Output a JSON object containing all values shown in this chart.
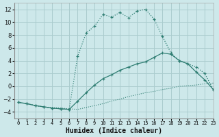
{
  "bg_color": "#cde8ea",
  "grid_color": "#aaccce",
  "line_color": "#2e7d72",
  "xlabel": "Humidex (Indice chaleur)",
  "line1_x": [
    0,
    1,
    2,
    3,
    4,
    5,
    6,
    7,
    8,
    9,
    10,
    11,
    12,
    13,
    14,
    15,
    16,
    17,
    18,
    19,
    20,
    21,
    22,
    23
  ],
  "line1_y": [
    -2.5,
    -2.7,
    -3.0,
    -3.2,
    -3.3,
    -3.4,
    -3.5,
    -3.6,
    -3.3,
    -3.0,
    -2.7,
    -2.3,
    -2.0,
    -1.6,
    -1.3,
    -1.0,
    -0.8,
    -0.5,
    -0.3,
    0.0,
    0.1,
    0.2,
    0.4,
    0.5
  ],
  "line2_x": [
    0,
    1,
    2,
    3,
    4,
    5,
    6,
    7,
    8,
    9,
    10,
    11,
    12,
    13,
    14,
    15,
    16,
    17,
    18,
    19,
    20,
    21,
    22,
    23
  ],
  "line2_y": [
    -2.5,
    -2.7,
    -3.0,
    -3.2,
    -3.4,
    -3.5,
    -3.6,
    -2.3,
    -1.0,
    0.2,
    1.2,
    1.8,
    2.5,
    3.0,
    3.5,
    3.8,
    4.5,
    5.2,
    5.0,
    4.0,
    3.5,
    2.2,
    1.0,
    -0.5
  ],
  "line3_x": [
    0,
    1,
    2,
    3,
    4,
    5,
    6,
    7,
    8,
    9,
    10,
    11,
    12,
    13,
    14,
    15,
    16,
    17,
    18,
    19,
    20,
    21,
    22,
    23
  ],
  "line3_y": [
    -2.5,
    -2.7,
    -3.0,
    -3.2,
    -3.4,
    -3.5,
    -3.6,
    4.7,
    8.3,
    9.4,
    11.2,
    10.8,
    11.5,
    10.7,
    11.7,
    12.0,
    10.5,
    7.8,
    5.2,
    4.0,
    3.5,
    3.0,
    2.0,
    -0.5
  ],
  "xlim": [
    -0.5,
    23
  ],
  "ylim": [
    -5,
    13
  ],
  "yticks": [
    -4,
    -2,
    0,
    2,
    4,
    6,
    8,
    10,
    12
  ],
  "xticks": [
    0,
    1,
    2,
    3,
    4,
    5,
    6,
    7,
    8,
    9,
    10,
    11,
    12,
    13,
    14,
    15,
    16,
    17,
    18,
    19,
    20,
    21,
    22,
    23
  ],
  "xtick_labels": [
    "0",
    "1",
    "2",
    "3",
    "4",
    "5",
    "6",
    "7",
    "8",
    "9",
    "10",
    "11",
    "12",
    "13",
    "14",
    "15",
    "16",
    "17",
    "18",
    "19",
    "20",
    "21",
    "22",
    "23"
  ]
}
